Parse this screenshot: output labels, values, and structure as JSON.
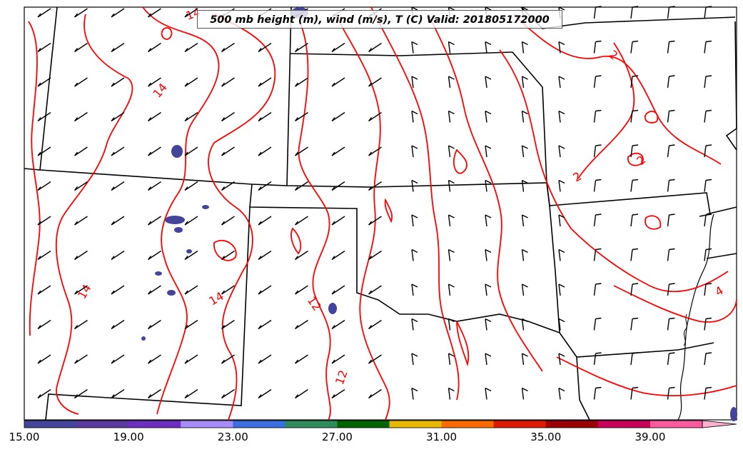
{
  "title": "500 mb height (m), wind (m/s), T (C) Valid: 201805172000",
  "contour_color": "#ff0000",
  "contour_labels": [
    "14",
    "14",
    "14",
    "14",
    "12",
    "12",
    "2",
    "2",
    "2",
    "4"
  ],
  "colorbar": {
    "ticks": [
      "15.00",
      "19.00",
      "23.00",
      "27.00",
      "31.00",
      "35.00",
      "39.00"
    ],
    "colors": [
      "#44449a",
      "#5a3a9e",
      "#6a2fc0",
      "#a78bfa",
      "#3b6fe0",
      "#2e8b5a",
      "#006400",
      "#e8b800",
      "#ff6a00",
      "#dd1a00",
      "#990000",
      "#c8005a",
      "#ff5aa0"
    ],
    "extend_color": "#ffb0d0"
  },
  "icons": [
    "wind-barb-icon"
  ]
}
